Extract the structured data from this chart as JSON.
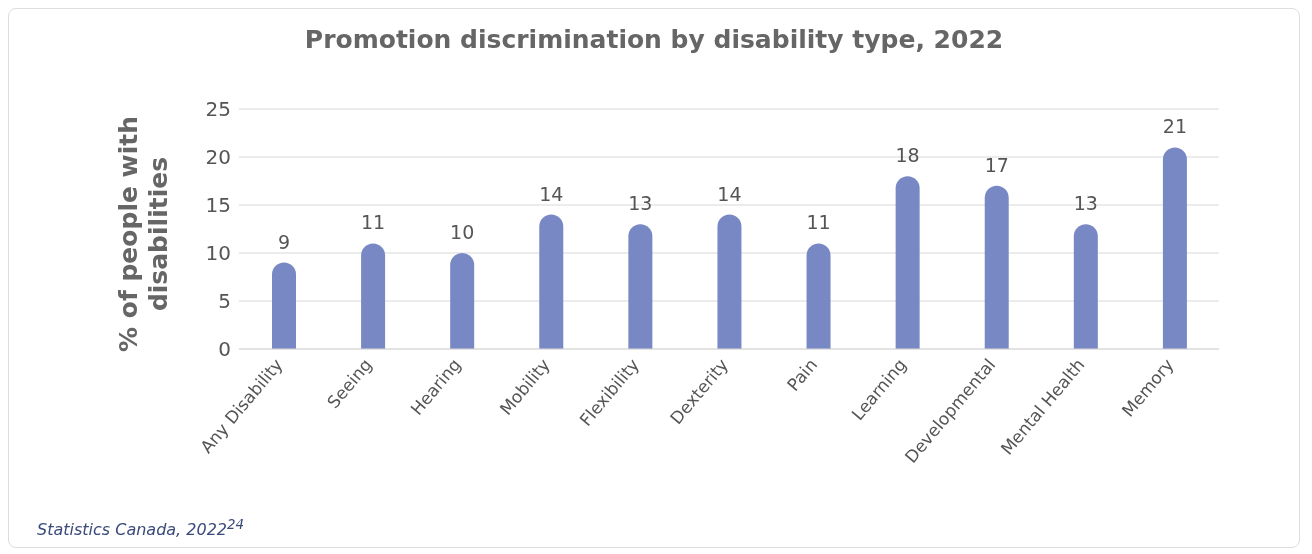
{
  "chart_data": {
    "type": "bar",
    "title": "Promotion discrimination by disability type, 2022",
    "ylabel": "% of people with disabilities",
    "categories": [
      "Any Disability",
      "Seeing",
      "Hearing",
      "Mobility",
      "Flexibility",
      "Dexterity",
      "Pain",
      "Learning",
      "Developmental",
      "Mental Health",
      "Memory"
    ],
    "values": [
      9,
      11,
      10,
      14,
      13,
      14,
      11,
      18,
      17,
      13,
      21
    ],
    "color": "#7888c4",
    "ylim": [
      0,
      25
    ],
    "yticks": [
      0,
      5,
      10,
      15,
      20,
      25
    ],
    "grid": "y",
    "data_labels": true,
    "annotations": [
      "Statistics Canada, 2022$^{24}$"
    ]
  }
}
